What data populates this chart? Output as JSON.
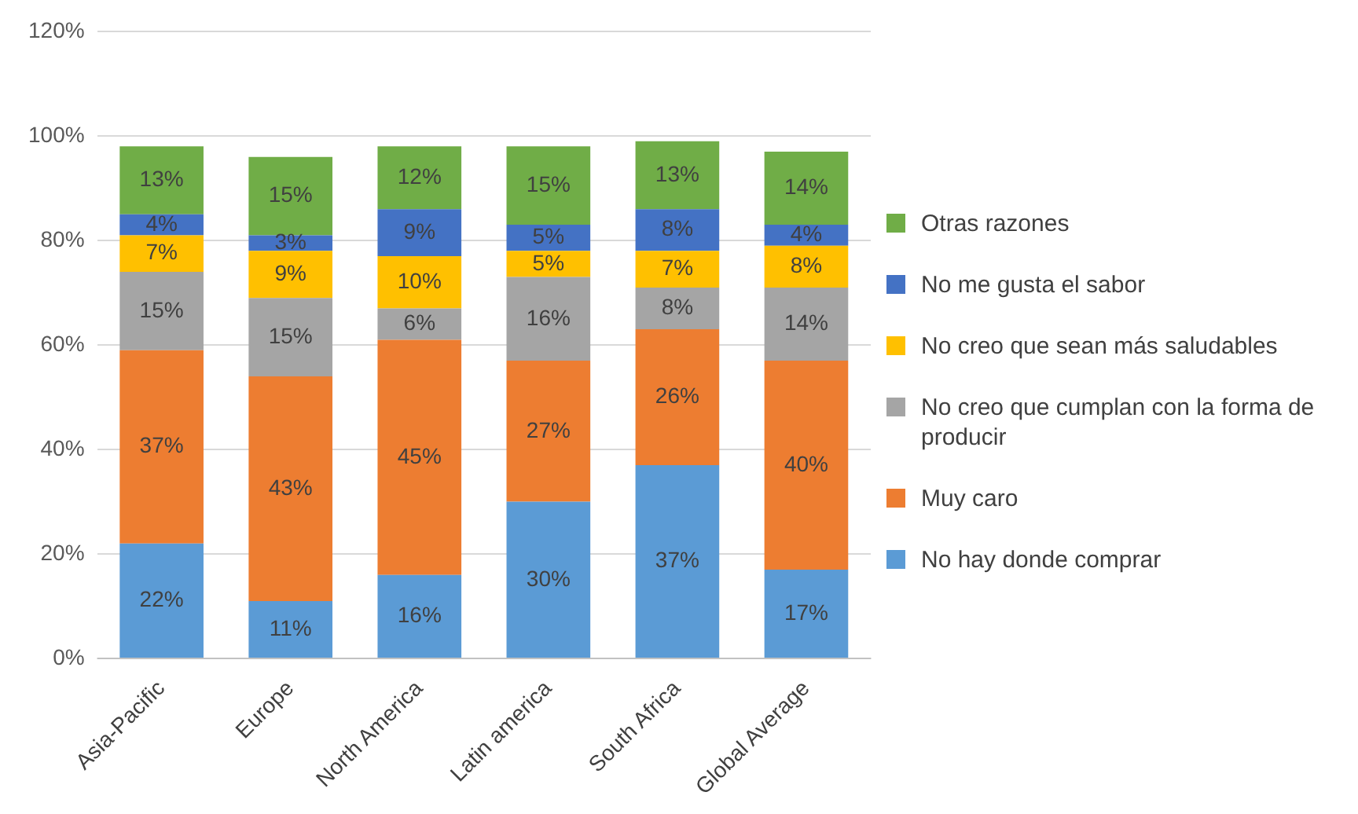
{
  "chart_data": {
    "type": "bar",
    "stacked": true,
    "categories": [
      "Asia-Pacific",
      "Europe",
      "North America",
      "Latin america",
      "South Africa",
      "Global Average"
    ],
    "series": [
      {
        "name": "No hay donde comprar",
        "color": "#5b9bd5",
        "values": [
          22,
          11,
          16,
          30,
          37,
          17
        ],
        "value_labels": [
          "22%",
          "11%",
          "16%",
          "30%",
          "37%",
          "17%"
        ]
      },
      {
        "name": "Muy caro",
        "color": "#ed7d31",
        "values": [
          37,
          43,
          45,
          27,
          26,
          40
        ],
        "value_labels": [
          "37%",
          "43%",
          "45%",
          "27%",
          "26%",
          "40%"
        ]
      },
      {
        "name": "No creo que cumplan con la forma de producir",
        "color": "#a5a5a5",
        "values": [
          15,
          15,
          6,
          16,
          8,
          14
        ],
        "value_labels": [
          "15%",
          "15%",
          "6%",
          "16%",
          "8%",
          "14%"
        ]
      },
      {
        "name": "No creo que sean más saludables",
        "color": "#ffc000",
        "values": [
          7,
          9,
          10,
          5,
          7,
          8
        ],
        "value_labels": [
          "7%",
          "9%",
          "10%",
          "5%",
          "7%",
          "8%"
        ]
      },
      {
        "name": "No me gusta el sabor",
        "color": "#4472c4",
        "values": [
          4,
          3,
          9,
          5,
          8,
          4
        ],
        "value_labels": [
          "4%",
          "3%",
          "9%",
          "5%",
          "8%",
          "4%"
        ]
      },
      {
        "name": "Otras razones",
        "color": "#70ad47",
        "values": [
          13,
          15,
          12,
          15,
          13,
          14
        ],
        "value_labels": [
          "13%",
          "15%",
          "12%",
          "15%",
          "13%",
          "14%"
        ]
      }
    ],
    "ylim": [
      0,
      120
    ],
    "yticks": [
      {
        "value": 0,
        "label": "0%"
      },
      {
        "value": 20,
        "label": "20%"
      },
      {
        "value": 40,
        "label": "40%"
      },
      {
        "value": 60,
        "label": "60%"
      },
      {
        "value": 80,
        "label": "80%"
      },
      {
        "value": 100,
        "label": "100%"
      },
      {
        "value": 120,
        "label": "120%"
      }
    ],
    "grid": "y",
    "legend": "right"
  }
}
